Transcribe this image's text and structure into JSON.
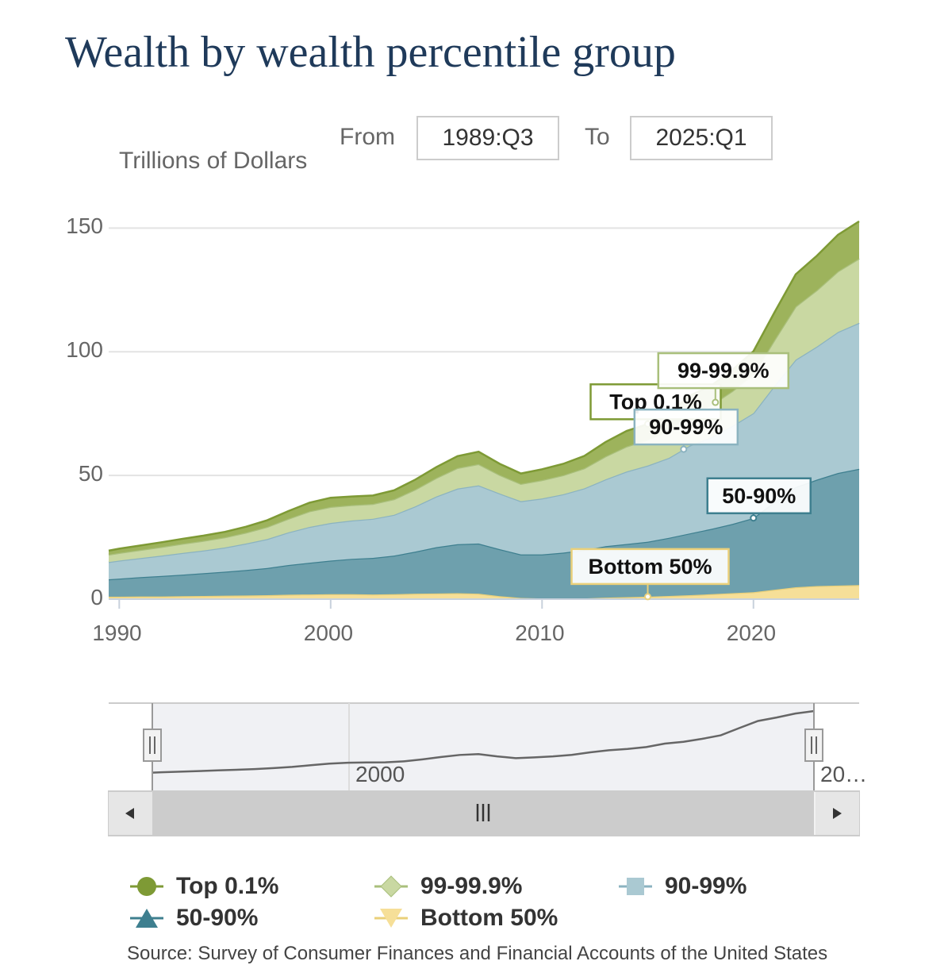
{
  "title": "Wealth by wealth percentile group",
  "range": {
    "from_label": "From",
    "from_value": "1989:Q3",
    "to_label": "To",
    "to_value": "2025:Q1"
  },
  "colors": {
    "top01": "#9db35c",
    "top01_dark": "#7e9a35",
    "p999": "#c9d8a2",
    "p999_dark": "#a9bf7b",
    "p9099": "#aac9d2",
    "p9099_dark": "#8bb3c0",
    "p5090": "#6ea0ad",
    "p5090_dark": "#3e7f8f",
    "bottom50": "#f6df98",
    "bottom50_dark": "#ead07a"
  },
  "chart_data": {
    "type": "area",
    "stacked": true,
    "title": "Wealth by wealth percentile group",
    "ylabel": "Trillions of Dollars",
    "xlabel": "",
    "ylim": [
      0,
      162
    ],
    "xlim": [
      1989.5,
      2025.0
    ],
    "y_ticks": [
      "0",
      "50",
      "100",
      "150"
    ],
    "x_ticks": [
      "1990",
      "2000",
      "2010",
      "2020"
    ],
    "x": [
      1989.5,
      1990,
      1991,
      1992,
      1993,
      1994,
      1995,
      1996,
      1997,
      1998,
      1999,
      2000,
      2001,
      2002,
      2003,
      2004,
      2005,
      2006,
      2007,
      2008,
      2009,
      2010,
      2011,
      2012,
      2013,
      2014,
      2015,
      2016,
      2017,
      2018,
      2019,
      2020,
      2021,
      2022,
      2023,
      2024,
      2025
    ],
    "series": [
      {
        "name": "Bottom 50%",
        "key": "bottom50",
        "values": [
          1.0,
          1.0,
          1.1,
          1.1,
          1.2,
          1.3,
          1.4,
          1.5,
          1.6,
          1.8,
          1.9,
          2.0,
          2.0,
          1.9,
          2.0,
          2.2,
          2.3,
          2.4,
          2.2,
          1.2,
          0.5,
          0.3,
          0.2,
          0.3,
          0.6,
          0.8,
          1.0,
          1.3,
          1.6,
          2.0,
          2.4,
          2.8,
          3.8,
          4.8,
          5.3,
          5.5,
          5.7
        ]
      },
      {
        "name": "50-90%",
        "key": "p5090",
        "values": [
          7.0,
          7.3,
          7.8,
          8.3,
          8.7,
          9.2,
          9.7,
          10.3,
          11.0,
          12.0,
          12.8,
          13.6,
          14.3,
          14.8,
          15.6,
          17.0,
          18.7,
          19.8,
          20.3,
          19.0,
          17.6,
          17.8,
          18.6,
          19.6,
          20.8,
          21.5,
          22.2,
          23.5,
          25.0,
          26.4,
          28.0,
          30.0,
          35.5,
          40.5,
          43.0,
          45.5,
          47.0
        ]
      },
      {
        "name": "90-99%",
        "key": "p9099",
        "values": [
          7.0,
          7.3,
          7.7,
          8.2,
          8.8,
          9.2,
          9.8,
          10.7,
          11.7,
          13.2,
          14.5,
          15.2,
          15.5,
          15.8,
          16.5,
          18.3,
          20.5,
          22.5,
          23.5,
          22.5,
          21.5,
          22.6,
          23.6,
          24.9,
          27.0,
          29.3,
          30.8,
          32.3,
          35.5,
          37.0,
          39.6,
          42.4,
          47.0,
          51.5,
          53.8,
          57.0,
          59.0
        ]
      },
      {
        "name": "99-99.9%",
        "key": "p999",
        "values": [
          3.0,
          3.1,
          3.3,
          3.5,
          3.7,
          3.9,
          4.1,
          4.4,
          4.9,
          5.5,
          6.3,
          6.5,
          6.2,
          6.0,
          6.3,
          6.8,
          7.5,
          8.3,
          8.6,
          7.5,
          7.0,
          7.4,
          7.7,
          8.1,
          9.3,
          10.1,
          10.4,
          11.0,
          12.5,
          13.0,
          14.1,
          15.6,
          18.5,
          21.5,
          22.8,
          24.5,
          26.0
        ]
      },
      {
        "name": "Top 0.1%",
        "key": "top01",
        "values": [
          1.6,
          1.7,
          1.8,
          1.9,
          2.0,
          2.1,
          2.2,
          2.4,
          2.7,
          3.1,
          3.5,
          3.7,
          3.5,
          3.4,
          3.6,
          4.0,
          4.4,
          4.8,
          5.0,
          4.5,
          4.2,
          4.4,
          4.6,
          5.0,
          5.8,
          6.3,
          6.4,
          6.8,
          7.7,
          7.9,
          8.5,
          9.4,
          11.2,
          13.0,
          13.9,
          14.8,
          15.0
        ]
      }
    ],
    "annotations": [
      {
        "label": "Top 0.1%",
        "series": "Top 0.1%",
        "x": 2015.0
      },
      {
        "label": "99-99.9%",
        "series": "99-99.9%",
        "x": 2018.2
      },
      {
        "label": "90-99%",
        "series": "90-99%",
        "x": 2016.7
      },
      {
        "label": "50-90%",
        "series": "50-90%",
        "x": 2020.0
      },
      {
        "label": "Bottom 50%",
        "series": "Bottom 50%",
        "x": 2015.0
      }
    ],
    "navigator": {
      "tick_labels": [
        "2000",
        "20…"
      ],
      "selection_from": 1989.5,
      "selection_to": 2025.0
    }
  },
  "legend": {
    "items": [
      {
        "label": "Top 0.1%",
        "key": "top01",
        "marker": "circle"
      },
      {
        "label": "99-99.9%",
        "key": "p999",
        "marker": "diamond"
      },
      {
        "label": "90-99%",
        "key": "p9099",
        "marker": "square"
      },
      {
        "label": "50-90%",
        "key": "p5090",
        "marker": "triangle"
      },
      {
        "label": "Bottom 50%",
        "key": "bottom50",
        "marker": "triangle-down"
      }
    ]
  },
  "source_text": "Source: Survey of Consumer Finances and Financial Accounts of the United States"
}
